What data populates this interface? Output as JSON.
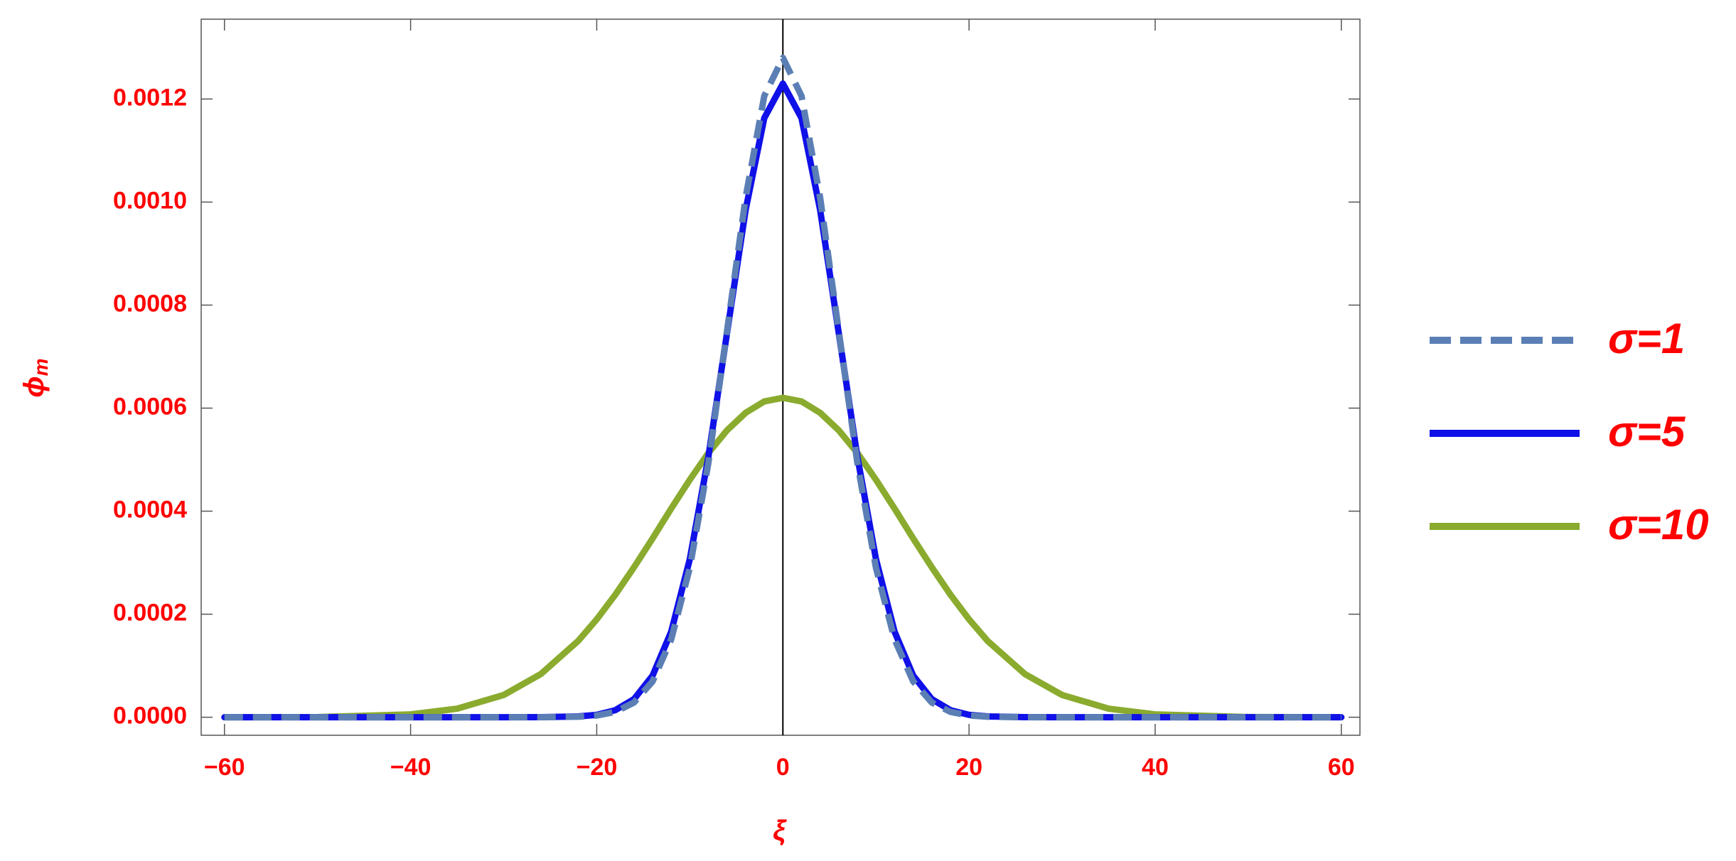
{
  "chart_data": {
    "type": "line",
    "xlabel": "ξ",
    "ylabel": [
      "ϕ",
      "m"
    ],
    "x": [
      -60,
      -50,
      -40,
      -35,
      -30,
      -26,
      -22,
      -20,
      -18,
      -16,
      -14,
      -12,
      -10,
      -8,
      -6,
      -4,
      -2,
      0,
      2,
      4,
      6,
      8,
      10,
      12,
      14,
      16,
      18,
      20,
      22,
      26,
      30,
      35,
      40,
      50,
      60
    ],
    "series": [
      {
        "name": "σ=1",
        "color": "#5b7fb5",
        "dashed": true,
        "values": [
          0,
          0,
          0,
          0,
          0,
          0,
          1e-06,
          3.4e-06,
          1.04e-05,
          2.85e-05,
          6.95e-05,
          0.000151,
          0.00029,
          0.000494,
          0.00075,
          0.001009,
          0.001206,
          0.00128,
          0.001206,
          0.001009,
          0.00075,
          0.000494,
          0.00029,
          0.000151,
          6.95e-05,
          2.85e-05,
          1.04e-05,
          3.4e-06,
          1e-06,
          0,
          0,
          0,
          0,
          0,
          0
        ]
      },
      {
        "name": "σ=5",
        "color": "#1010e8",
        "dashed": false,
        "values": [
          0,
          0,
          0,
          0,
          0,
          1e-07,
          1.5e-06,
          4.7e-06,
          1.37e-05,
          3.51e-05,
          8.08e-05,
          0.000166,
          0.000307,
          0.000506,
          0.000746,
          0.000985,
          0.001163,
          0.00123,
          0.001163,
          0.000985,
          0.000746,
          0.000506,
          0.000307,
          0.000166,
          8.08e-05,
          3.51e-05,
          1.37e-05,
          4.7e-06,
          1.5e-06,
          1e-07,
          0,
          0,
          0,
          0,
          0
        ]
      },
      {
        "name": "σ=10",
        "color": "#8aab2e",
        "dashed": false,
        "values": [
          0,
          4e-07,
          5.5e-06,
          1.66e-05,
          4.32e-05,
          8.39e-05,
          0.000148,
          0.00019,
          0.000238,
          0.000291,
          0.000347,
          0.000405,
          0.000461,
          0.000513,
          0.000557,
          0.000591,
          0.000613,
          0.00062,
          0.000613,
          0.000591,
          0.000557,
          0.000513,
          0.000461,
          0.000405,
          0.000347,
          0.000291,
          0.000238,
          0.00019,
          0.000148,
          8.39e-05,
          4.32e-05,
          1.66e-05,
          5.5e-06,
          4e-07,
          0
        ]
      }
    ],
    "xlim": [
      -62.5,
      62
    ],
    "ylim": [
      -3.5e-05,
      0.001355
    ],
    "xticks": [
      {
        "value": -60,
        "label": "−60"
      },
      {
        "value": -40,
        "label": "−40"
      },
      {
        "value": -20,
        "label": "−20"
      },
      0,
      20,
      40,
      60
    ],
    "yticks": [
      {
        "value": 0,
        "label": "0.0000"
      },
      0.0002,
      0.0004,
      0.0006,
      0.0008,
      {
        "value": 0.001,
        "label": "0.0010"
      },
      0.0012
    ],
    "zero_line": true,
    "grid": false,
    "legend_position": "right"
  }
}
